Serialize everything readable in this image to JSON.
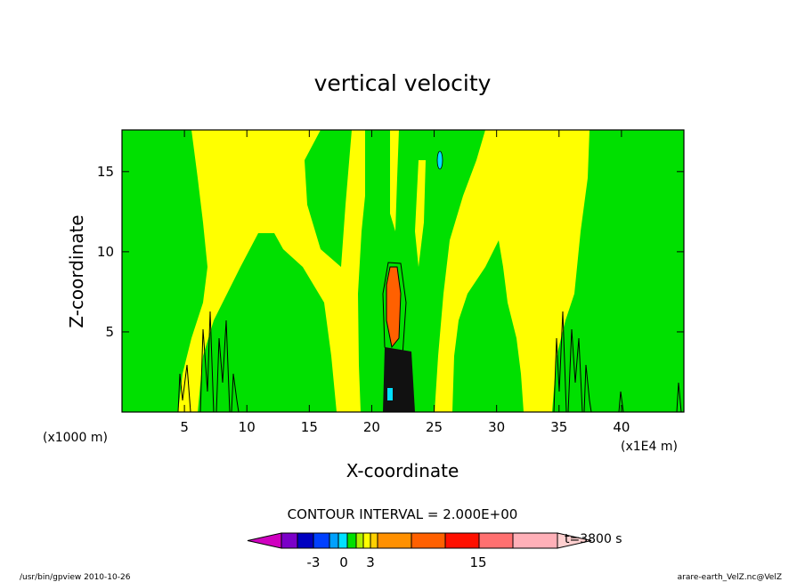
{
  "chart_data": {
    "type": "heatmap",
    "title": "vertical velocity",
    "xlabel": "X-coordinate",
    "ylabel": "Z-coordinate",
    "x_unit_left": "(x1000 m)",
    "x_unit_right": "(x1E4 m)",
    "xlim": [
      0,
      45
    ],
    "ylim": [
      0,
      17.6
    ],
    "x_ticks": [
      "5",
      "10",
      "15",
      "20",
      "25",
      "30",
      "35",
      "40"
    ],
    "x_tick_values": [
      5,
      10,
      15,
      20,
      25,
      30,
      35,
      40
    ],
    "y_ticks": [
      "5",
      "10",
      "15"
    ],
    "y_tick_values": [
      5,
      10,
      15
    ],
    "contour_interval_text": "CONTOUR INTERVAL = 2.000E+00",
    "contour_interval": 2.0,
    "time_label": "t=3800 s",
    "colorbar": {
      "tick_labels": [
        "-3",
        "0",
        "3",
        "15"
      ],
      "levels": [
        -9,
        -7,
        -5,
        -3,
        -2,
        -1,
        0,
        1,
        2,
        3,
        5,
        7,
        9,
        11,
        13,
        15,
        17
      ],
      "colors": [
        "#d000c0",
        "#7b00c8",
        "#0000c0",
        "#0040ff",
        "#00a0ff",
        "#00e0ff",
        "#00e000",
        "#b0f000",
        "#ffff00",
        "#ffd000",
        "#ff9000",
        "#ff6000",
        "#ff1000",
        "#ff7070",
        "#ffb0b8",
        "#ffd0d0"
      ]
    },
    "regions": [
      {
        "value": 0.5,
        "color": "#00e000"
      },
      {
        "value": 1.5,
        "color": "#ffff00"
      },
      {
        "value": 9,
        "color": "#ff6000"
      },
      {
        "value": -1.5,
        "color": "#00e0ff"
      }
    ],
    "grid": false,
    "legend": "bottom"
  },
  "footer": {
    "left": "/usr/bin/gpview   2010-10-26",
    "right": "arare-earth_VelZ.nc@VelZ"
  }
}
